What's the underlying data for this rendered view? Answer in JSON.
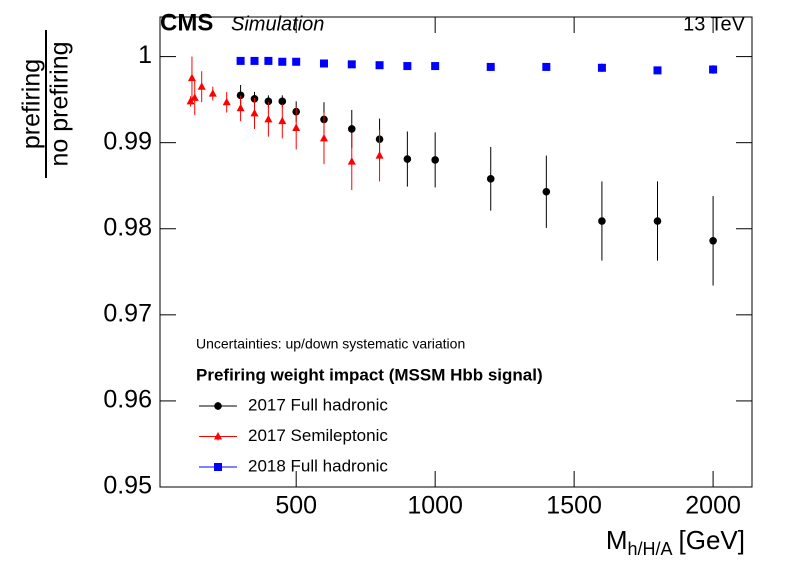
{
  "chart_data": {
    "type": "scatter",
    "experiment": "CMS",
    "subtitle": "Simulation",
    "energy": "13 TeV",
    "y_label": {
      "numerator": "prefiring",
      "denominator": "no prefiring"
    },
    "x_label": {
      "main": "M",
      "sub": "h/H/A",
      "unit": "[GeV]"
    },
    "annotation": "Uncertainties: up/down systematic variation",
    "legend_title": "Prefiring weight impact (MSSM Hbb signal)",
    "xlim": [
      10,
      2140
    ],
    "ylim": [
      0.95,
      1.0046
    ],
    "xticks": [
      500,
      1000,
      1500,
      2000
    ],
    "yticks": [
      0.95,
      0.96,
      0.97,
      0.98,
      0.99,
      1
    ],
    "series": [
      {
        "name": "2017 Full hadronic",
        "color": "#000000",
        "marker": "circle",
        "x": [
          300,
          350,
          400,
          450,
          500,
          600,
          700,
          800,
          900,
          1000,
          1200,
          1400,
          1600,
          1800,
          2000
        ],
        "values": [
          0.9955,
          0.9951,
          0.9948,
          0.9948,
          0.9936,
          0.9927,
          0.9916,
          0.9904,
          0.9881,
          0.988,
          0.9858,
          0.9843,
          0.9809,
          0.9809,
          0.9786
        ],
        "errors": [
          0.0012,
          0.0008,
          0.0007,
          0.0007,
          0.0012,
          0.002,
          0.0022,
          0.0024,
          0.0032,
          0.0032,
          0.0037,
          0.0042,
          0.0046,
          0.0046,
          0.0052
        ]
      },
      {
        "name": "2017 Semileptonic",
        "color": "#ff0000",
        "marker": "triangle",
        "x": [
          120,
          125,
          135,
          160,
          200,
          250,
          300,
          350,
          400,
          450,
          500,
          600,
          700,
          800
        ],
        "values": [
          0.9948,
          0.9975,
          0.9952,
          0.9965,
          0.9957,
          0.9947,
          0.994,
          0.9934,
          0.9927,
          0.9925,
          0.9917,
          0.9905,
          0.9878,
          0.9885
        ],
        "errors": [
          0.0006,
          0.0025,
          0.002,
          0.0018,
          0.0008,
          0.0012,
          0.0015,
          0.0018,
          0.002,
          0.002,
          0.0025,
          0.003,
          0.0033,
          0.003
        ]
      },
      {
        "name": "2018 Full hadronic",
        "color": "#0000ff",
        "marker": "square",
        "x": [
          300,
          350,
          400,
          450,
          500,
          600,
          700,
          800,
          900,
          1000,
          1200,
          1400,
          1600,
          1800,
          2000
        ],
        "values": [
          0.9995,
          0.9995,
          0.9995,
          0.9994,
          0.9994,
          0.9992,
          0.9991,
          0.999,
          0.9989,
          0.9989,
          0.9988,
          0.9988,
          0.9987,
          0.9984,
          0.9985
        ],
        "errors": [
          0.0001,
          0.0001,
          0.0001,
          0.0001,
          0.0001,
          0.0001,
          0.0001,
          0.0001,
          0.0001,
          0.0001,
          0.0002,
          0.0002,
          0.0005,
          0.0002,
          0.0005
        ]
      }
    ]
  }
}
